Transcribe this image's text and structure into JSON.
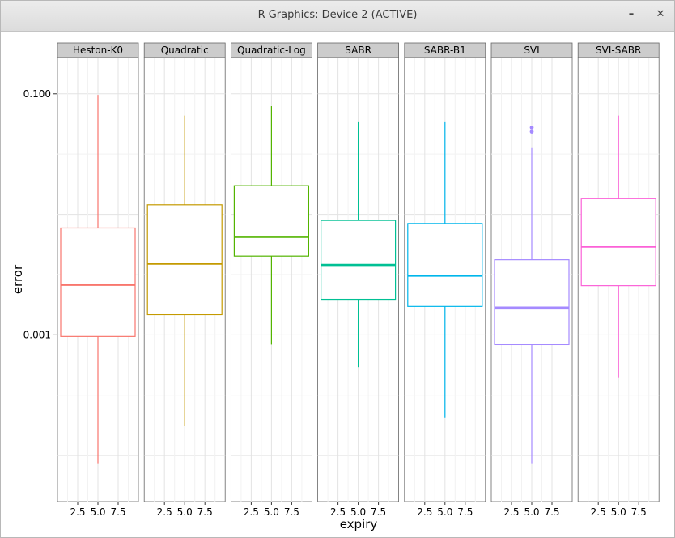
{
  "window": {
    "title": "R Graphics: Device 2 (ACTIVE)",
    "minimize_icon": "minimize-icon",
    "close_icon": "close-icon",
    "minimize_glyph": "–",
    "close_glyph": "✕"
  },
  "chart_data": {
    "type": "box",
    "xlabel": "expiry",
    "ylabel": "error",
    "y_scale": "log10",
    "y_ticks": [
      {
        "value": 0.1,
        "label": "0.100"
      },
      {
        "value": 0.001,
        "label": "0.001"
      }
    ],
    "ylim": [
      4.15e-05,
      0.2
    ],
    "x_ticks": [
      {
        "value": 2.5,
        "label": "2.5"
      },
      {
        "value": 5.0,
        "label": "5.0"
      },
      {
        "value": 7.5,
        "label": "7.5"
      }
    ],
    "xlim": [
      0,
      10
    ],
    "grid": true,
    "panels": [
      {
        "name": "Heston-K0",
        "color": "#F8766D",
        "x": 5.0,
        "whisker_low": 8.5e-05,
        "q1": 0.00097,
        "median": 0.0026,
        "q3": 0.0077,
        "whisker_high": 0.098,
        "outliers": []
      },
      {
        "name": "Quadratic",
        "color": "#C49A00",
        "x": 5.0,
        "whisker_low": 0.000175,
        "q1": 0.00147,
        "median": 0.0039,
        "q3": 0.012,
        "whisker_high": 0.066,
        "outliers": []
      },
      {
        "name": "Quadratic-Log",
        "color": "#53B400",
        "x": 5.0,
        "whisker_low": 0.00083,
        "q1": 0.0045,
        "median": 0.0065,
        "q3": 0.0173,
        "whisker_high": 0.079,
        "outliers": []
      },
      {
        "name": "SABR",
        "color": "#00C094",
        "x": 5.0,
        "whisker_low": 0.00054,
        "q1": 0.00197,
        "median": 0.0038,
        "q3": 0.0089,
        "whisker_high": 0.059,
        "outliers": []
      },
      {
        "name": "SABR-B1",
        "color": "#00B6EB",
        "x": 5.0,
        "whisker_low": 0.000205,
        "q1": 0.00172,
        "median": 0.0031,
        "q3": 0.0084,
        "whisker_high": 0.059,
        "outliers": []
      },
      {
        "name": "SVI",
        "color": "#A58AFF",
        "x": 5.0,
        "whisker_low": 8.5e-05,
        "q1": 0.00083,
        "median": 0.00168,
        "q3": 0.0042,
        "whisker_high": 0.0355,
        "outliers": [
          0.0485,
          0.0525
        ]
      },
      {
        "name": "SVI-SABR",
        "color": "#FB61D7",
        "x": 5.0,
        "whisker_low": 0.000445,
        "q1": 0.00256,
        "median": 0.0054,
        "q3": 0.0136,
        "whisker_high": 0.066,
        "outliers": []
      }
    ]
  }
}
